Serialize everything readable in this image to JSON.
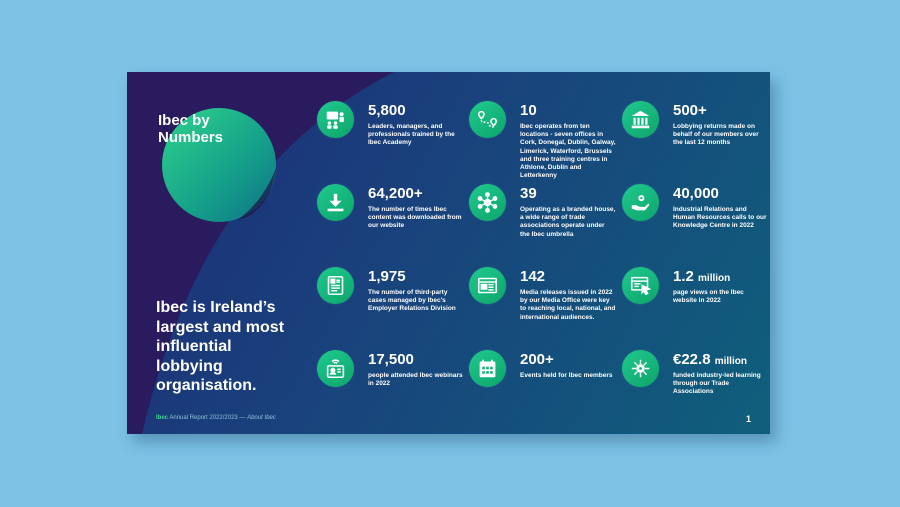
{
  "page": {
    "title": "Ibec by Numbers",
    "tagline": "Ibec is Ireland’s largest and most influential lobbying organisation.",
    "footer": {
      "org": "Ibec",
      "report": "Annual Report 2022/2023",
      "separator": "—",
      "section": "About Ibec"
    },
    "page_number": "1"
  },
  "stats": [
    {
      "value": "5,800",
      "unit": "",
      "icon": "training-icon",
      "description": "Leaders, managers, and professionals trained by the Ibec Academy"
    },
    {
      "value": "10",
      "unit": "",
      "icon": "location-route-icon",
      "description": "Ibec operates from ten locations - seven offices in Cork, Donegal, Dublin, Galway, Limerick, Waterford, Brussels and three training centres in Athlone, Dublin and Letterkenny"
    },
    {
      "value": "500+",
      "unit": "",
      "icon": "government-building-icon",
      "description": "Lobbying returns made on behalf of our members over the last 12 months"
    },
    {
      "value": "64,200+",
      "unit": "",
      "icon": "download-icon",
      "description": "The number of times Ibec content was downloaded from our website"
    },
    {
      "value": "39",
      "unit": "",
      "icon": "network-icon",
      "description": "Operating as a branded house, a wide range of trade associations operate under the Ibec umbrella"
    },
    {
      "value": "40,000",
      "unit": "",
      "icon": "hand-gear-icon",
      "description": "Industrial Relations and Human Resources calls to our Knowledge Centre in 2022"
    },
    {
      "value": "1,975",
      "unit": "",
      "icon": "case-file-icon",
      "description": "The number of third-party cases managed by Ibec’s Employer Relations Division"
    },
    {
      "value": "142",
      "unit": "",
      "icon": "newspaper-icon",
      "description": "Media releases issued in 2022 by our Media Office were key to reaching local, national, and international audiences."
    },
    {
      "value": "1.2",
      "unit": "million",
      "icon": "browser-click-icon",
      "description": "page views on the Ibec website in 2022"
    },
    {
      "value": "17,500",
      "unit": "",
      "icon": "webinar-icon",
      "description": "people attended Ibec webinars in 2022"
    },
    {
      "value": "200+",
      "unit": "",
      "icon": "calendar-icon",
      "description": "Events held for Ibec members"
    },
    {
      "value": "€22.8",
      "unit": "million",
      "icon": "learning-hub-icon",
      "description": "funded industry-led learning through our Trade Associations"
    }
  ],
  "colors": {
    "background": "#7cc3e6",
    "page_navy": "#1d2c78",
    "page_teal": "#0f5f7c",
    "dark_purple": "#2a1a5e",
    "accent_green": "#1fc98d"
  }
}
